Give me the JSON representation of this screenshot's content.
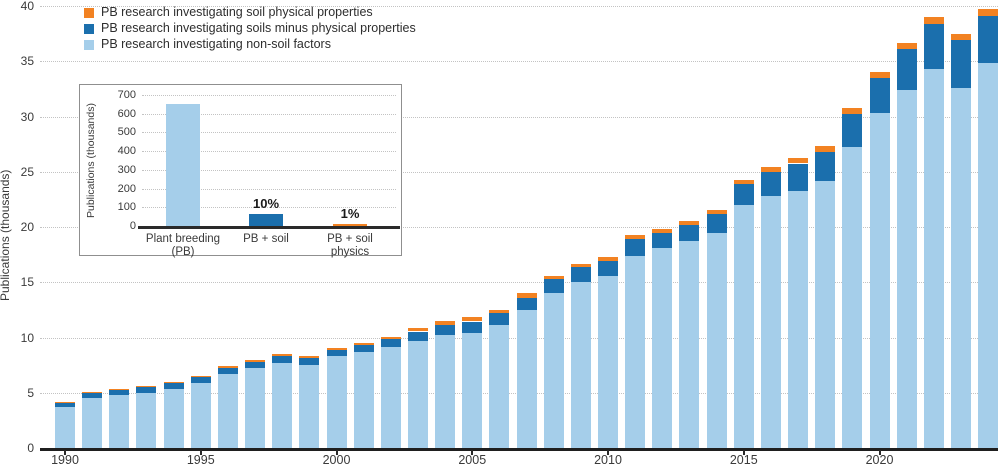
{
  "figure": {
    "background": "#ffffff",
    "axis_line_color": "#1f1f1f",
    "grid_color": "#c3c3c3",
    "text_color": "#3a3a3a"
  },
  "legend": {
    "items": [
      {
        "label": "PB research investigating soil physical properties",
        "color": "#F28222"
      },
      {
        "label": "PB research investigating soils minus physical properties",
        "color": "#1B6FAD"
      },
      {
        "label": "PB research investigating non-soil factors",
        "color": "#A5CEEA"
      }
    ]
  },
  "chart_data": [
    {
      "type": "bar",
      "stacked": true,
      "title": "",
      "xlabel": "",
      "ylabel": "Publications (thousands)",
      "ylim": [
        0,
        40
      ],
      "y_ticks": [
        0,
        5,
        10,
        15,
        20,
        25,
        30,
        35,
        40
      ],
      "x_tick_years": [
        1990,
        1995,
        2000,
        2005,
        2010,
        2015,
        2020
      ],
      "grid": "horizontal-dotted",
      "legend_position": "top-left",
      "x": [
        1990,
        1991,
        1992,
        1993,
        1994,
        1995,
        1996,
        1997,
        1998,
        1999,
        2000,
        2001,
        2002,
        2003,
        2004,
        2005,
        2006,
        2007,
        2008,
        2009,
        2010,
        2011,
        2012,
        2013,
        2014,
        2015,
        2016,
        2017,
        2018,
        2019,
        2020,
        2021,
        2022,
        2023,
        2024
      ],
      "series": [
        {
          "name": "PB research investigating non-soil factors",
          "color": "#A5CEEA",
          "values": [
            3.7,
            4.55,
            4.8,
            5.0,
            5.35,
            5.9,
            6.7,
            7.25,
            7.7,
            7.55,
            8.3,
            8.7,
            9.1,
            9.7,
            10.2,
            10.45,
            11.1,
            12.5,
            14.0,
            15.0,
            15.6,
            17.4,
            18.1,
            18.7,
            19.5,
            22.0,
            22.8,
            23.3,
            24.2,
            27.2,
            30.3,
            32.4,
            34.3,
            32.6,
            34.8
          ]
        },
        {
          "name": "PB research investigating soils minus physical properties",
          "color": "#1B6FAD",
          "values": [
            0.4,
            0.45,
            0.45,
            0.5,
            0.55,
            0.5,
            0.5,
            0.5,
            0.6,
            0.6,
            0.6,
            0.65,
            0.8,
            0.85,
            0.9,
            1.0,
            1.1,
            1.1,
            1.3,
            1.35,
            1.35,
            1.5,
            1.4,
            1.5,
            1.7,
            1.9,
            2.2,
            2.45,
            2.6,
            3.0,
            3.2,
            3.7,
            4.1,
            4.3,
            4.3
          ]
        },
        {
          "name": "PB research investigating soil physical properties",
          "color": "#F28222",
          "values": [
            0.05,
            0.1,
            0.1,
            0.1,
            0.1,
            0.1,
            0.15,
            0.15,
            0.2,
            0.2,
            0.15,
            0.15,
            0.2,
            0.3,
            0.35,
            0.35,
            0.3,
            0.45,
            0.3,
            0.3,
            0.4,
            0.35,
            0.4,
            0.4,
            0.4,
            0.4,
            0.45,
            0.45,
            0.5,
            0.55,
            0.55,
            0.5,
            0.6,
            0.55,
            0.65
          ]
        }
      ]
    },
    {
      "type": "bar",
      "title": "",
      "xlabel": "",
      "ylabel": "Publications (thousands)",
      "ylim": [
        0,
        700
      ],
      "y_ticks": [
        0,
        100,
        200,
        300,
        400,
        500,
        600,
        700
      ],
      "grid": "horizontal-dotted",
      "categories": [
        [
          "Plant breeding",
          "(PB)"
        ],
        [
          "PB + soil"
        ],
        [
          "PB + soil",
          "physics"
        ]
      ],
      "values": [
        650,
        62,
        8
      ],
      "colors": [
        "#A5CEEA",
        "#1B6FAD",
        "#F28222"
      ],
      "bar_labels": [
        "",
        "10%",
        "1%"
      ]
    }
  ]
}
